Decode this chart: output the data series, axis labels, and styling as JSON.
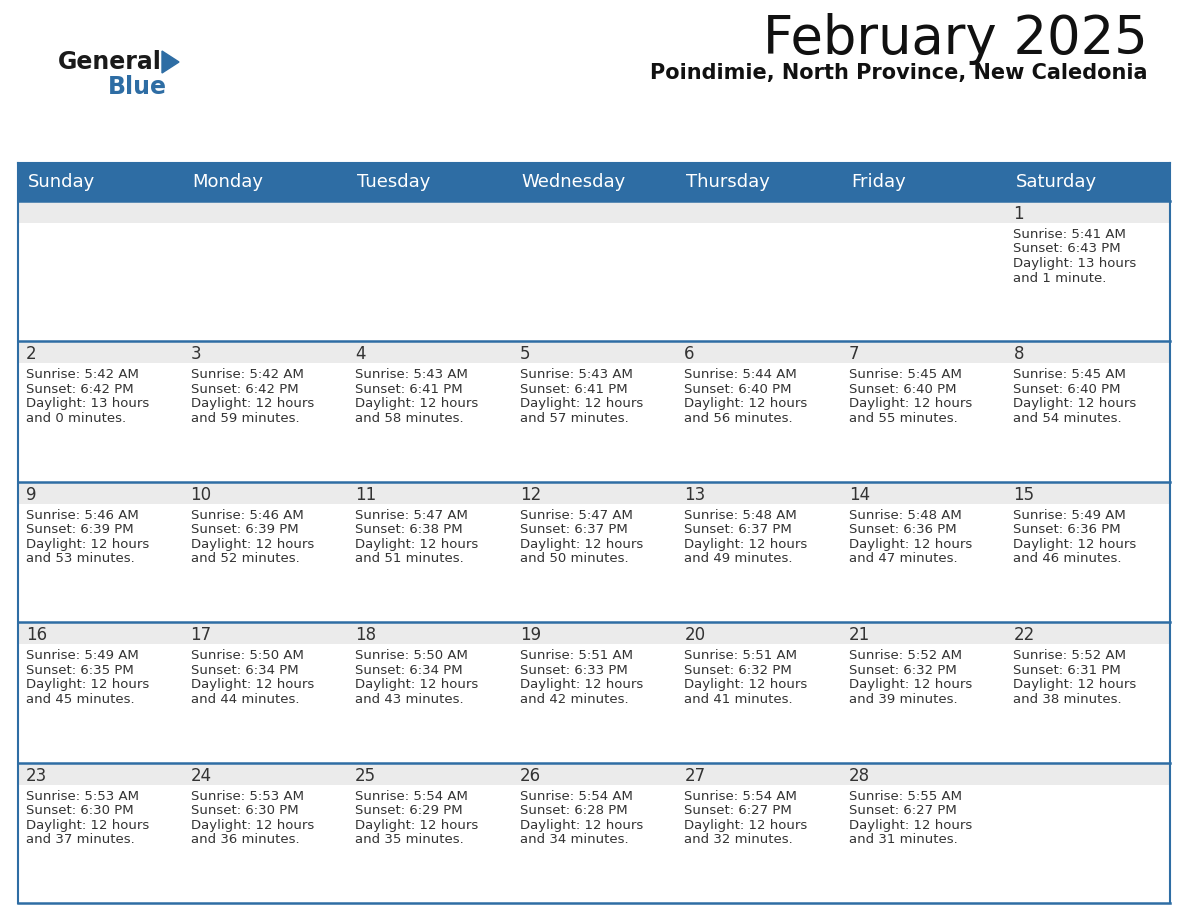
{
  "title": "February 2025",
  "subtitle": "Poindimie, North Province, New Caledonia",
  "header_color": "#2e6da4",
  "header_text_color": "#ffffff",
  "cell_bg_white": "#ffffff",
  "cell_bg_gray": "#ebebeb",
  "text_color": "#333333",
  "day_number_color": "#333333",
  "border_color": "#2e6da4",
  "days_of_week": [
    "Sunday",
    "Monday",
    "Tuesday",
    "Wednesday",
    "Thursday",
    "Friday",
    "Saturday"
  ],
  "calendar_data": [
    [
      null,
      null,
      null,
      null,
      null,
      null,
      {
        "day": 1,
        "sunrise": "5:41 AM",
        "sunset": "6:43 PM",
        "daylight_hours": 13,
        "daylight_minutes": 1
      }
    ],
    [
      {
        "day": 2,
        "sunrise": "5:42 AM",
        "sunset": "6:42 PM",
        "daylight_hours": 13,
        "daylight_minutes": 0
      },
      {
        "day": 3,
        "sunrise": "5:42 AM",
        "sunset": "6:42 PM",
        "daylight_hours": 12,
        "daylight_minutes": 59
      },
      {
        "day": 4,
        "sunrise": "5:43 AM",
        "sunset": "6:41 PM",
        "daylight_hours": 12,
        "daylight_minutes": 58
      },
      {
        "day": 5,
        "sunrise": "5:43 AM",
        "sunset": "6:41 PM",
        "daylight_hours": 12,
        "daylight_minutes": 57
      },
      {
        "day": 6,
        "sunrise": "5:44 AM",
        "sunset": "6:40 PM",
        "daylight_hours": 12,
        "daylight_minutes": 56
      },
      {
        "day": 7,
        "sunrise": "5:45 AM",
        "sunset": "6:40 PM",
        "daylight_hours": 12,
        "daylight_minutes": 55
      },
      {
        "day": 8,
        "sunrise": "5:45 AM",
        "sunset": "6:40 PM",
        "daylight_hours": 12,
        "daylight_minutes": 54
      }
    ],
    [
      {
        "day": 9,
        "sunrise": "5:46 AM",
        "sunset": "6:39 PM",
        "daylight_hours": 12,
        "daylight_minutes": 53
      },
      {
        "day": 10,
        "sunrise": "5:46 AM",
        "sunset": "6:39 PM",
        "daylight_hours": 12,
        "daylight_minutes": 52
      },
      {
        "day": 11,
        "sunrise": "5:47 AM",
        "sunset": "6:38 PM",
        "daylight_hours": 12,
        "daylight_minutes": 51
      },
      {
        "day": 12,
        "sunrise": "5:47 AM",
        "sunset": "6:37 PM",
        "daylight_hours": 12,
        "daylight_minutes": 50
      },
      {
        "day": 13,
        "sunrise": "5:48 AM",
        "sunset": "6:37 PM",
        "daylight_hours": 12,
        "daylight_minutes": 49
      },
      {
        "day": 14,
        "sunrise": "5:48 AM",
        "sunset": "6:36 PM",
        "daylight_hours": 12,
        "daylight_minutes": 47
      },
      {
        "day": 15,
        "sunrise": "5:49 AM",
        "sunset": "6:36 PM",
        "daylight_hours": 12,
        "daylight_minutes": 46
      }
    ],
    [
      {
        "day": 16,
        "sunrise": "5:49 AM",
        "sunset": "6:35 PM",
        "daylight_hours": 12,
        "daylight_minutes": 45
      },
      {
        "day": 17,
        "sunrise": "5:50 AM",
        "sunset": "6:34 PM",
        "daylight_hours": 12,
        "daylight_minutes": 44
      },
      {
        "day": 18,
        "sunrise": "5:50 AM",
        "sunset": "6:34 PM",
        "daylight_hours": 12,
        "daylight_minutes": 43
      },
      {
        "day": 19,
        "sunrise": "5:51 AM",
        "sunset": "6:33 PM",
        "daylight_hours": 12,
        "daylight_minutes": 42
      },
      {
        "day": 20,
        "sunrise": "5:51 AM",
        "sunset": "6:32 PM",
        "daylight_hours": 12,
        "daylight_minutes": 41
      },
      {
        "day": 21,
        "sunrise": "5:52 AM",
        "sunset": "6:32 PM",
        "daylight_hours": 12,
        "daylight_minutes": 39
      },
      {
        "day": 22,
        "sunrise": "5:52 AM",
        "sunset": "6:31 PM",
        "daylight_hours": 12,
        "daylight_minutes": 38
      }
    ],
    [
      {
        "day": 23,
        "sunrise": "5:53 AM",
        "sunset": "6:30 PM",
        "daylight_hours": 12,
        "daylight_minutes": 37
      },
      {
        "day": 24,
        "sunrise": "5:53 AM",
        "sunset": "6:30 PM",
        "daylight_hours": 12,
        "daylight_minutes": 36
      },
      {
        "day": 25,
        "sunrise": "5:54 AM",
        "sunset": "6:29 PM",
        "daylight_hours": 12,
        "daylight_minutes": 35
      },
      {
        "day": 26,
        "sunrise": "5:54 AM",
        "sunset": "6:28 PM",
        "daylight_hours": 12,
        "daylight_minutes": 34
      },
      {
        "day": 27,
        "sunrise": "5:54 AM",
        "sunset": "6:27 PM",
        "daylight_hours": 12,
        "daylight_minutes": 32
      },
      {
        "day": 28,
        "sunrise": "5:55 AM",
        "sunset": "6:27 PM",
        "daylight_hours": 12,
        "daylight_minutes": 31
      },
      null
    ]
  ],
  "logo_text_general": "General",
  "logo_text_blue": "Blue",
  "logo_color_general": "#1a1a1a",
  "logo_color_blue": "#2e6da4",
  "logo_triangle_color": "#2e6da4",
  "title_fontsize": 38,
  "subtitle_fontsize": 15,
  "header_fontsize": 13,
  "day_num_fontsize": 12,
  "cell_text_fontsize": 9.5
}
